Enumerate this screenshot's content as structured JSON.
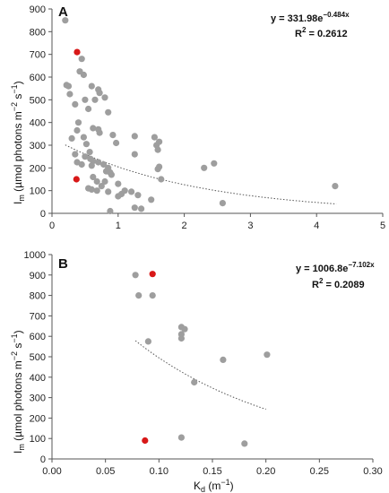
{
  "chart_data": [
    {
      "type": "scatter",
      "panel_label": "A",
      "ylabel": "I",
      "ylabel_sub": "m",
      "ylabel_units": " (µmol photons m",
      "ylabel_exp1": "−2",
      "ylabel_mid": " s",
      "ylabel_exp2": "−1",
      "ylabel_end": ")",
      "xlim": [
        0,
        5
      ],
      "ylim": [
        0,
        900
      ],
      "xticks": [
        "0",
        "1",
        "2",
        "3",
        "4",
        "5"
      ],
      "yticks": [
        "0",
        "100",
        "200",
        "300",
        "400",
        "500",
        "600",
        "700",
        "800",
        "900"
      ],
      "equation_base": "y = 331.98e",
      "equation_exp": "−0.484x",
      "r2_label": "R",
      "r2_exp": "2",
      "r2_value": " = 0.2612",
      "trend": {
        "a": 331.98,
        "b": -0.484,
        "x_from": 0.2,
        "x_to": 4.3
      },
      "series": [
        {
          "color": "#9e9e9e",
          "points": [
            [
              0.2,
              850
            ],
            [
              0.22,
              565
            ],
            [
              0.25,
              560
            ],
            [
              0.27,
              525
            ],
            [
              0.35,
              480
            ],
            [
              0.5,
              500
            ],
            [
              0.48,
              610
            ],
            [
              0.42,
              625
            ],
            [
              0.45,
              680
            ],
            [
              0.6,
              560
            ],
            [
              0.7,
              545
            ],
            [
              0.72,
              530
            ],
            [
              0.8,
              510
            ],
            [
              0.65,
              500
            ],
            [
              0.55,
              460
            ],
            [
              0.85,
              445
            ],
            [
              0.4,
              400
            ],
            [
              0.62,
              375
            ],
            [
              0.3,
              330
            ],
            [
              0.38,
              365
            ],
            [
              0.48,
              335
            ],
            [
              0.52,
              305
            ],
            [
              0.57,
              270
            ],
            [
              0.7,
              370
            ],
            [
              0.72,
              355
            ],
            [
              0.92,
              345
            ],
            [
              0.97,
              310
            ],
            [
              1.25,
              340
            ],
            [
              1.55,
              335
            ],
            [
              1.62,
              315
            ],
            [
              1.58,
              300
            ],
            [
              1.6,
              280
            ],
            [
              1.25,
              260
            ],
            [
              0.5,
              250
            ],
            [
              0.58,
              240
            ],
            [
              0.62,
              230
            ],
            [
              0.7,
              225
            ],
            [
              0.78,
              215
            ],
            [
              0.85,
              200
            ],
            [
              0.82,
              185
            ],
            [
              0.88,
              180
            ],
            [
              0.9,
              170
            ],
            [
              0.6,
              210
            ],
            [
              0.62,
              160
            ],
            [
              0.68,
              140
            ],
            [
              0.75,
              120
            ],
            [
              0.8,
              140
            ],
            [
              0.85,
              95
            ],
            [
              0.55,
              110
            ],
            [
              0.6,
              105
            ],
            [
              0.68,
              100
            ],
            [
              1.0,
              130
            ],
            [
              1.1,
              100
            ],
            [
              1.2,
              95
            ],
            [
              1.05,
              85
            ],
            [
              1.0,
              75
            ],
            [
              1.3,
              80
            ],
            [
              1.5,
              60
            ],
            [
              1.65,
              150
            ],
            [
              1.6,
              195
            ],
            [
              1.62,
              205
            ],
            [
              2.3,
              200
            ],
            [
              2.45,
              220
            ],
            [
              2.58,
              45
            ],
            [
              1.25,
              25
            ],
            [
              1.35,
              20
            ],
            [
              0.88,
              10
            ],
            [
              0.38,
              225
            ],
            [
              0.45,
              215
            ],
            [
              0.35,
              260
            ],
            [
              4.28,
              120
            ]
          ]
        },
        {
          "color": "#d81818",
          "points": [
            [
              0.38,
              710
            ],
            [
              0.37,
              150
            ]
          ]
        }
      ]
    },
    {
      "type": "scatter",
      "panel_label": "B",
      "ylabel": "I",
      "ylabel_sub": "m",
      "ylabel_units": " (µmol photons m",
      "ylabel_exp1": "−2",
      "ylabel_mid": " s",
      "ylabel_exp2": "−1",
      "ylabel_end": ")",
      "xlabel": "K",
      "xlabel_sub": "d",
      "xlabel_units": " (m",
      "xlabel_exp": "−1",
      "xlabel_end": ")",
      "xlim": [
        0,
        0.3
      ],
      "ylim": [
        0,
        1000
      ],
      "xticks": [
        "0.00",
        "0.05",
        "0.10",
        "0.15",
        "0.20",
        "0.25",
        "0.30"
      ],
      "yticks": [
        "0",
        "100",
        "200",
        "300",
        "400",
        "500",
        "600",
        "700",
        "800",
        "900",
        "1000"
      ],
      "equation_base": "y = 1006.8e",
      "equation_exp": "−7.102x",
      "r2_label": "R",
      "r2_exp": "2",
      "r2_value": " = 0.2089",
      "trend": {
        "a": 1006.8,
        "b": -7.102,
        "x_from": 0.078,
        "x_to": 0.2
      },
      "series": [
        {
          "color": "#9e9e9e",
          "points": [
            [
              0.078,
              900
            ],
            [
              0.081,
              800
            ],
            [
              0.094,
              800
            ],
            [
              0.09,
              575
            ],
            [
              0.121,
              645
            ],
            [
              0.124,
              635
            ],
            [
              0.121,
              610
            ],
            [
              0.121,
              590
            ],
            [
              0.133,
              375
            ],
            [
              0.16,
              485
            ],
            [
              0.201,
              510
            ],
            [
              0.121,
              105
            ],
            [
              0.18,
              75
            ]
          ]
        },
        {
          "color": "#d81818",
          "points": [
            [
              0.094,
              905
            ],
            [
              0.087,
              90
            ]
          ]
        }
      ]
    }
  ]
}
